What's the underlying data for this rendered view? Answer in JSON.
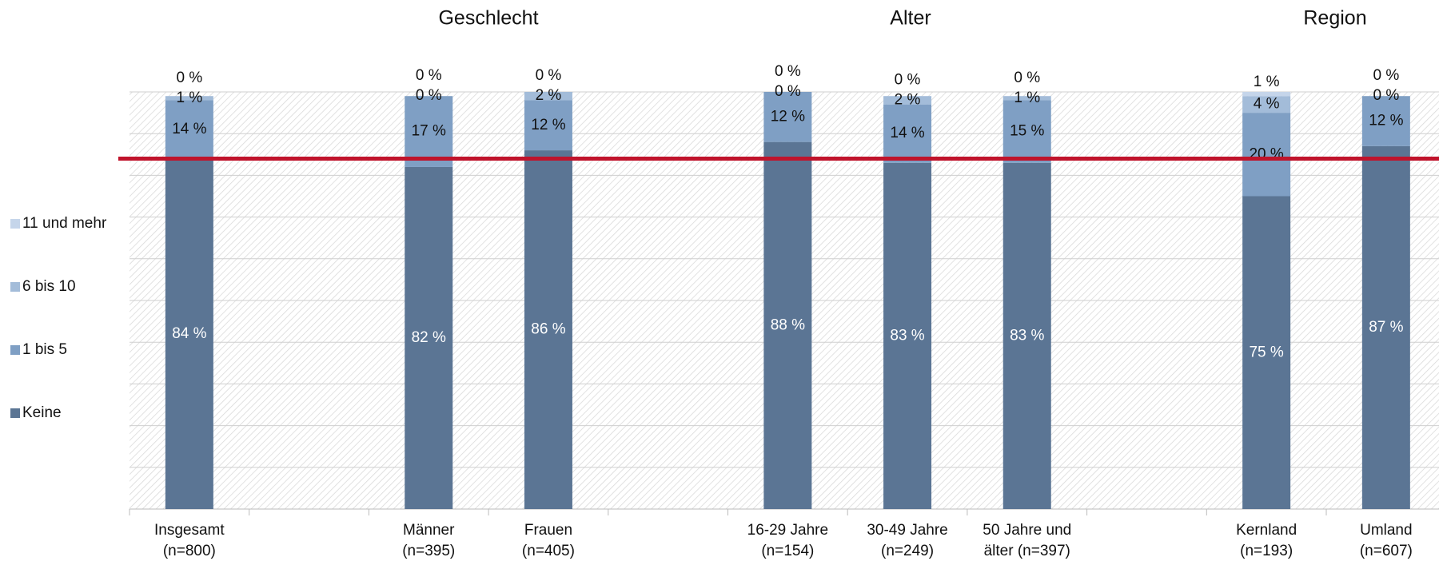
{
  "chart_data": {
    "type": "stacked_bar",
    "annotations": [
      "Geschlecht",
      "Alter",
      "Region"
    ],
    "categories": [
      [
        "Insgesamt",
        "(n=800)"
      ],
      null,
      [
        "Männer",
        "(n=395)"
      ],
      [
        "Frauen",
        "(n=405)"
      ],
      null,
      [
        "16-29 Jahre",
        "(n=154)"
      ],
      [
        "30-49 Jahre",
        "(n=249)"
      ],
      [
        "50 Jahre und",
        "älter (n=397)"
      ],
      null,
      [
        "Kernland",
        "(n=193)"
      ],
      [
        "Umland",
        "(n=607)"
      ]
    ],
    "series": [
      {
        "name": "Keine",
        "color": "#5b7594",
        "values": [
          84,
          null,
          82,
          86,
          null,
          88,
          83,
          83,
          null,
          75,
          87
        ],
        "value_labels": [
          "84 %",
          null,
          "82 %",
          "86 %",
          null,
          "88 %",
          "83 %",
          "83 %",
          null,
          "75 %",
          "87 %"
        ]
      },
      {
        "name": "1 bis 5",
        "color": "#7f9fc4",
        "values": [
          14,
          null,
          17,
          12,
          null,
          12,
          14,
          15,
          null,
          20,
          12
        ],
        "value_labels": [
          "14 %",
          null,
          "17 %",
          "12 %",
          null,
          "12 %",
          "14 %",
          "15 %",
          null,
          "20 %",
          "12 %"
        ]
      },
      {
        "name": "6 bis 10",
        "color": "#a3bcd9",
        "values": [
          1,
          null,
          0,
          2,
          null,
          0,
          2,
          1,
          null,
          4,
          0
        ],
        "value_labels": [
          "1 %",
          null,
          "0 %",
          "2 %",
          null,
          "0 %",
          "2 %",
          "1 %",
          null,
          "4 %",
          "0 %"
        ]
      },
      {
        "name": "11 und mehr",
        "color": "#c5d5ea",
        "values": [
          0,
          null,
          0,
          0,
          null,
          0,
          0,
          0,
          null,
          1,
          0
        ],
        "value_labels": [
          "0 %",
          null,
          "0 %",
          "0 %",
          null,
          "0 %",
          "0 %",
          "0 %",
          null,
          "1 %",
          "0 %"
        ]
      }
    ],
    "ylim": [
      0,
      100
    ],
    "yticks": [
      0,
      10,
      20,
      30,
      40,
      50,
      60,
      70,
      80,
      90,
      100
    ],
    "grid": true,
    "reference_line": {
      "value": 84,
      "color": "#c0132b"
    },
    "legend": "left"
  }
}
